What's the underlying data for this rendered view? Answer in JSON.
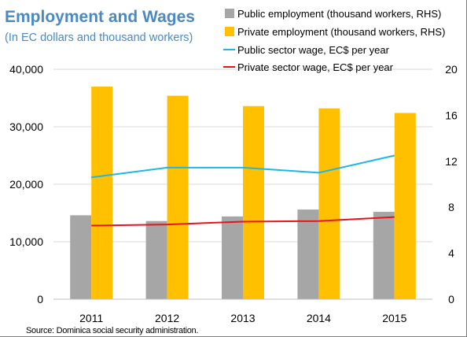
{
  "title": "Employment and Wages",
  "subtitle": "(In EC dollars and thousand workers)",
  "source": "Source: Dominica social security administration.",
  "chart_data": {
    "type": "bar",
    "categories": [
      "2011",
      "2012",
      "2013",
      "2014",
      "2015"
    ],
    "series": [
      {
        "name": "Public employment  (thousand workers, RHS)",
        "kind": "bar",
        "axis": "right",
        "color": "#a6a6a6",
        "values": [
          7.3,
          6.8,
          7.2,
          7.8,
          7.6
        ]
      },
      {
        "name": "Private employment (thousand workers, RHS)",
        "kind": "bar",
        "axis": "right",
        "color": "#ffc000",
        "values": [
          18.5,
          17.7,
          16.8,
          16.6,
          16.2
        ]
      },
      {
        "name": "Public sector wage, EC$ per year",
        "kind": "line",
        "axis": "left",
        "color": "#1fb7e6",
        "values": [
          21200,
          22900,
          22900,
          22000,
          25000
        ]
      },
      {
        "name": "Private sector wage, EC$ per year",
        "kind": "line",
        "axis": "left",
        "color": "#e8141c",
        "values": [
          12800,
          13000,
          13500,
          13600,
          14300
        ]
      }
    ],
    "left_axis": {
      "min": 0,
      "max": 40000,
      "ticks": [
        "0",
        "10,000",
        "20,000",
        "30,000",
        "40,000"
      ]
    },
    "right_axis": {
      "min": 0,
      "max": 20,
      "ticks": [
        "0",
        "4",
        "8",
        "12",
        "16",
        "20"
      ]
    },
    "grid": true,
    "legend_position": "top-right"
  }
}
